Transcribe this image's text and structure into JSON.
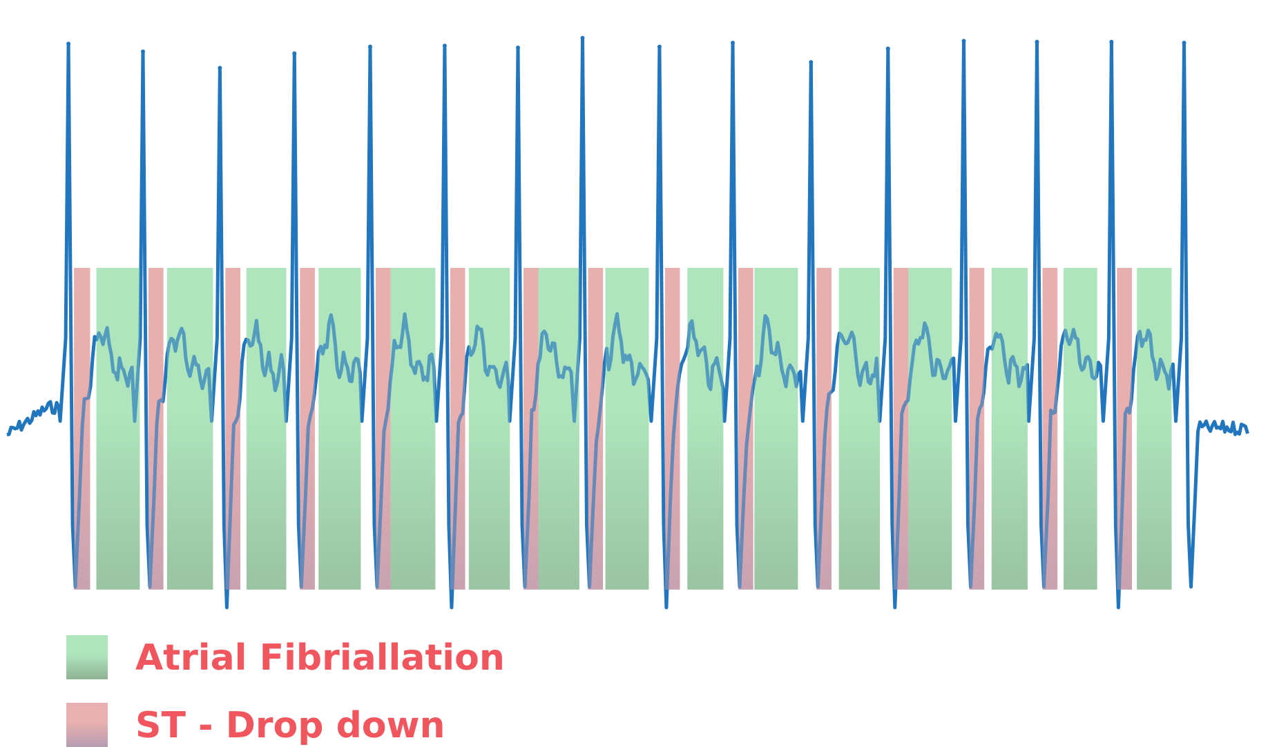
{
  "chart_data": {
    "type": "line",
    "grid": false,
    "legend_position": "bottom-left",
    "colors": {
      "signal": "#2276bd",
      "atrial_fibrillation_top": "#aee5bc",
      "atrial_fibrillation_bottom": "#8fb194",
      "st_drop_top": "#e8b0b0",
      "st_drop_bottom": "#b79cb2",
      "legend_text": "#f0565e"
    },
    "legend": [
      {
        "key": "af",
        "label": "Atrial Fibriallation"
      },
      {
        "key": "st",
        "label": "ST - Drop down"
      }
    ],
    "r_peaks": [
      0.94,
      0.86,
      0.69,
      0.84,
      0.91,
      0.92,
      0.9,
      1.0,
      0.91,
      0.95,
      0.75,
      0.89,
      0.97,
      0.96,
      0.96,
      0.95
    ],
    "segments": [
      {
        "type": "st",
        "start": 0.054,
        "end": 0.067
      },
      {
        "type": "af",
        "start": 0.072,
        "end": 0.107
      },
      {
        "type": "st",
        "start": 0.114,
        "end": 0.126
      },
      {
        "type": "af",
        "start": 0.129,
        "end": 0.166
      },
      {
        "type": "st",
        "start": 0.176,
        "end": 0.188
      },
      {
        "type": "af",
        "start": 0.193,
        "end": 0.225
      },
      {
        "type": "st",
        "start": 0.236,
        "end": 0.248
      },
      {
        "type": "af",
        "start": 0.251,
        "end": 0.285
      },
      {
        "type": "st",
        "start": 0.297,
        "end": 0.309
      },
      {
        "type": "af",
        "start": 0.309,
        "end": 0.345
      },
      {
        "type": "st",
        "start": 0.357,
        "end": 0.369
      },
      {
        "type": "af",
        "start": 0.372,
        "end": 0.405
      },
      {
        "type": "st",
        "start": 0.416,
        "end": 0.428
      },
      {
        "type": "af",
        "start": 0.428,
        "end": 0.461
      },
      {
        "type": "st",
        "start": 0.468,
        "end": 0.48
      },
      {
        "type": "af",
        "start": 0.482,
        "end": 0.517
      },
      {
        "type": "st",
        "start": 0.53,
        "end": 0.542
      },
      {
        "type": "af",
        "start": 0.548,
        "end": 0.577
      },
      {
        "type": "st",
        "start": 0.589,
        "end": 0.601
      },
      {
        "type": "af",
        "start": 0.602,
        "end": 0.637
      },
      {
        "type": "st",
        "start": 0.652,
        "end": 0.664
      },
      {
        "type": "af",
        "start": 0.67,
        "end": 0.703
      },
      {
        "type": "st",
        "start": 0.714,
        "end": 0.726
      },
      {
        "type": "af",
        "start": 0.726,
        "end": 0.761
      },
      {
        "type": "st",
        "start": 0.775,
        "end": 0.787
      },
      {
        "type": "af",
        "start": 0.793,
        "end": 0.822
      },
      {
        "type": "st",
        "start": 0.834,
        "end": 0.846
      },
      {
        "type": "af",
        "start": 0.851,
        "end": 0.878
      },
      {
        "type": "st",
        "start": 0.894,
        "end": 0.906
      },
      {
        "type": "af",
        "start": 0.91,
        "end": 0.938
      }
    ]
  }
}
